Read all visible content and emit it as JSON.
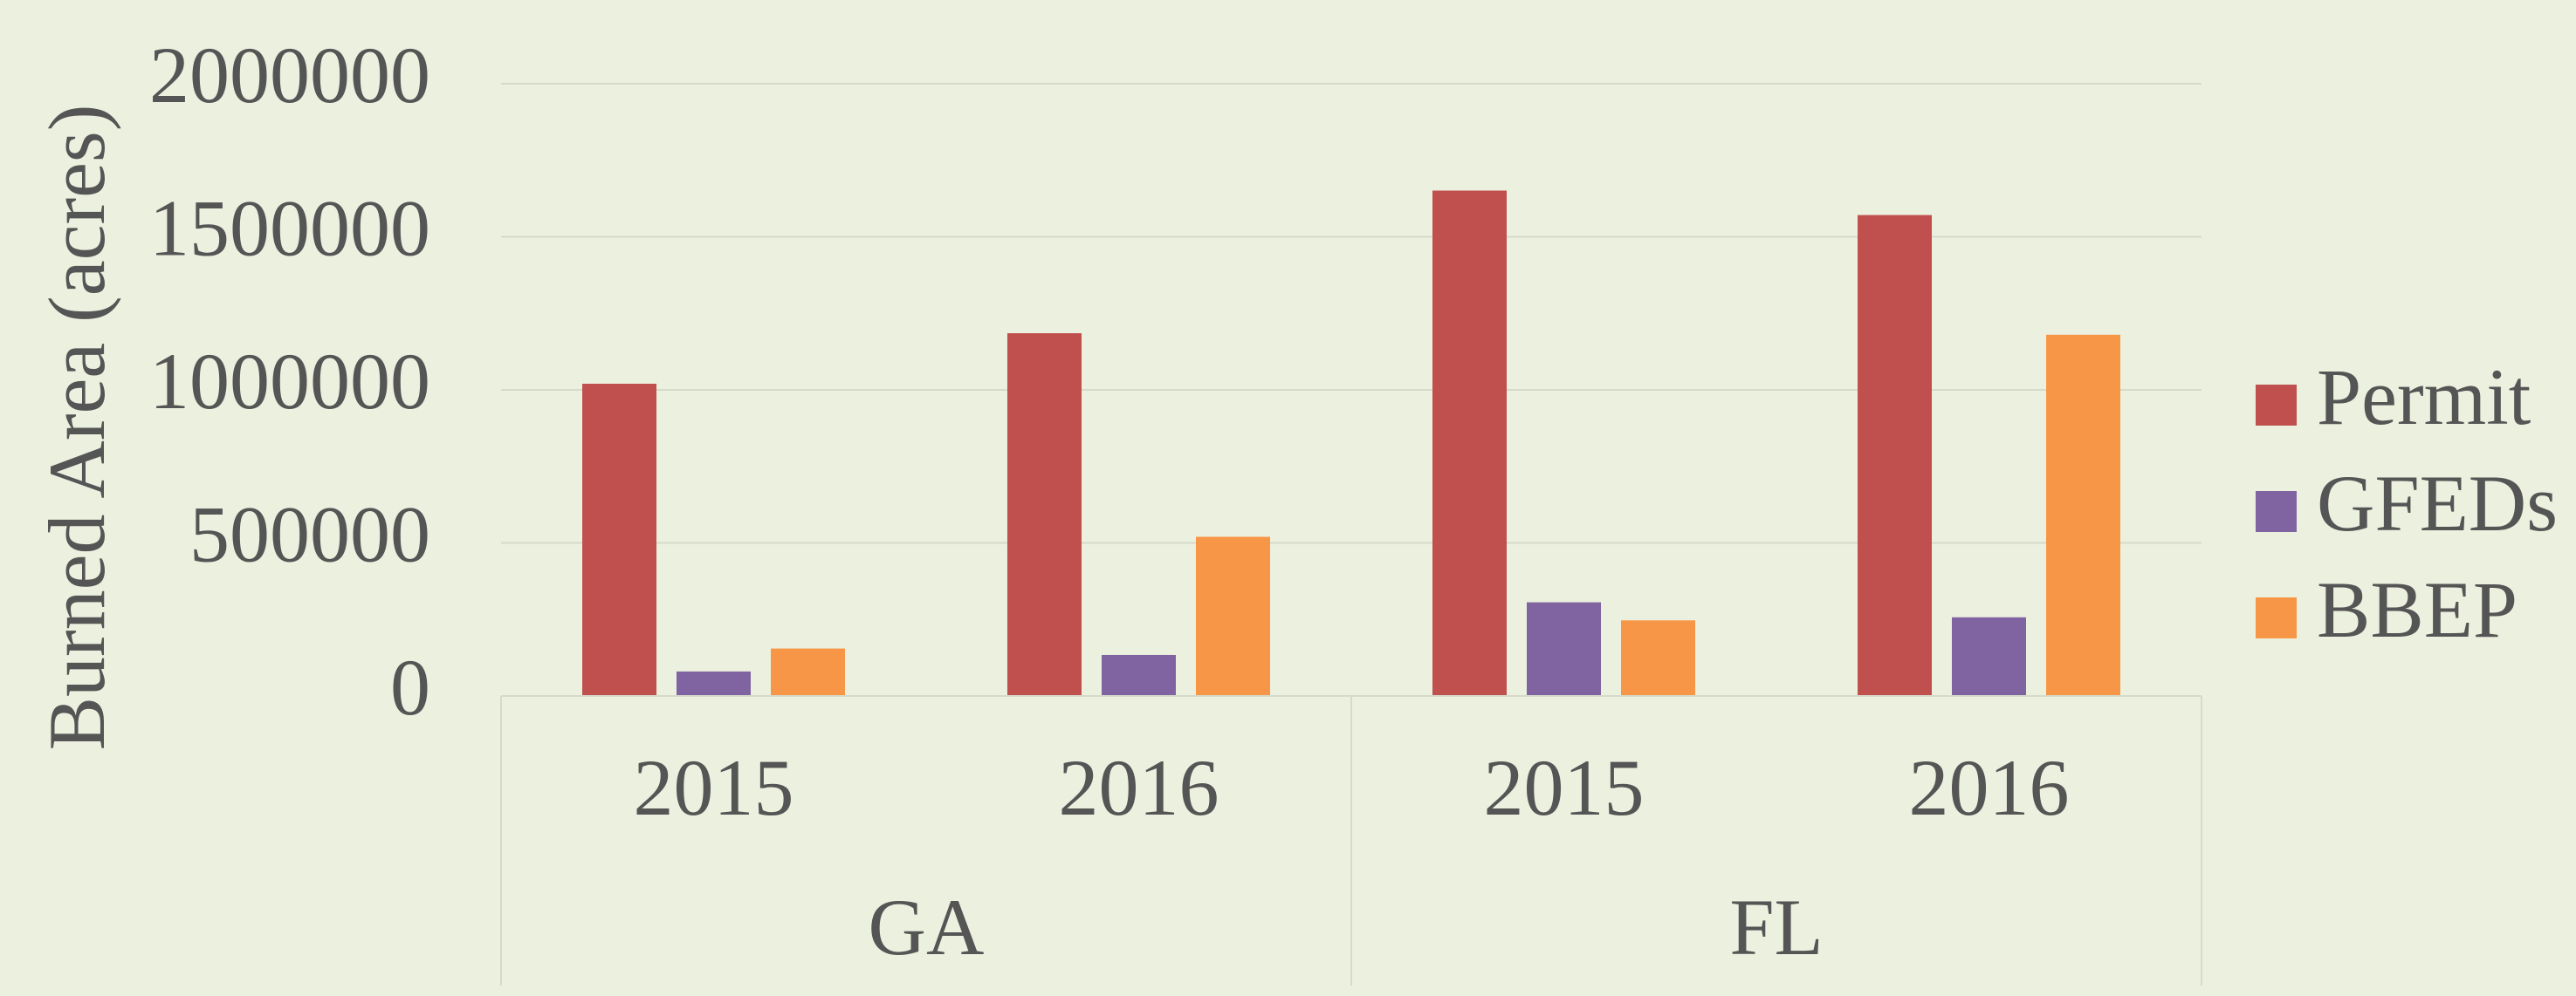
{
  "chart_data": {
    "type": "bar",
    "y_label": "Burned Area (acres)",
    "categories": [
      "2015",
      "2016",
      "2015",
      "2016"
    ],
    "category_groups": [
      "GA",
      "FL"
    ],
    "series": [
      {
        "name": "Permit",
        "color": "#c0504d",
        "values": [
          1020000,
          1185000,
          1651000,
          1571000
        ]
      },
      {
        "name": "GFEDs",
        "color": "#8064a2",
        "values": [
          80000,
          134000,
          306000,
          257000
        ]
      },
      {
        "name": "BBEP",
        "color": "#f79646",
        "values": [
          155000,
          520000,
          247000,
          1180000
        ]
      }
    ],
    "ylim": [
      0,
      2000000
    ],
    "yticks": [
      0,
      500000,
      1000000,
      1500000,
      2000000
    ],
    "grid": true,
    "legend": "right"
  }
}
